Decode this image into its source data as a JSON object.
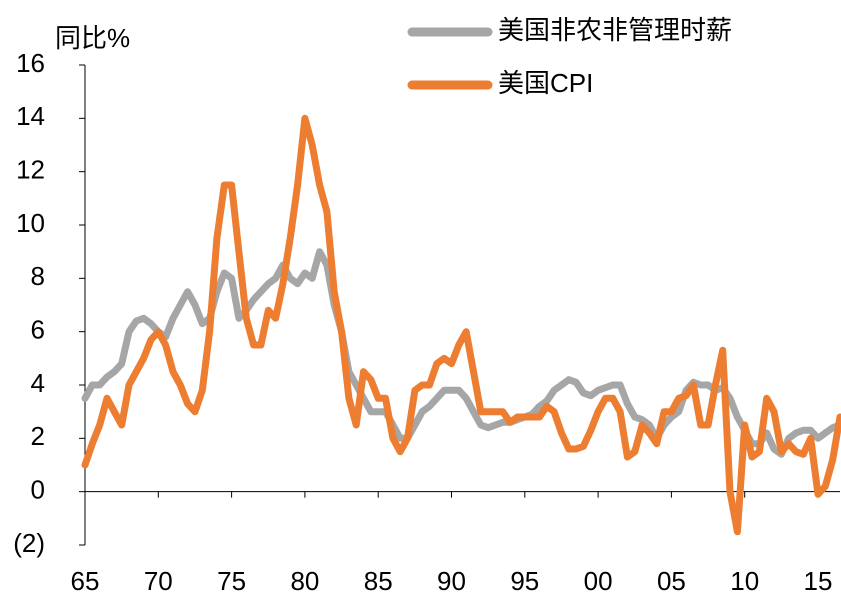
{
  "chart_data": {
    "type": "line",
    "ylabel": "同比%",
    "categories": [
      "65",
      null,
      null,
      null,
      null,
      null,
      null,
      null,
      null,
      null,
      "70",
      null,
      null,
      null,
      null,
      null,
      null,
      null,
      null,
      null,
      "75",
      null,
      null,
      null,
      null,
      null,
      null,
      null,
      null,
      null,
      "80",
      null,
      null,
      null,
      null,
      null,
      null,
      null,
      null,
      null,
      "85",
      null,
      null,
      null,
      null,
      null,
      null,
      null,
      null,
      null,
      "90",
      null,
      null,
      null,
      null,
      null,
      null,
      null,
      null,
      null,
      "95",
      null,
      null,
      null,
      null,
      null,
      null,
      null,
      null,
      null,
      "00",
      null,
      null,
      null,
      null,
      null,
      null,
      null,
      null,
      null,
      "05",
      null,
      null,
      null,
      null,
      null,
      null,
      null,
      null,
      null,
      "10",
      null,
      null,
      null,
      null,
      null,
      null,
      null,
      null,
      null,
      "15",
      null,
      null,
      null
    ],
    "series": [
      {
        "name": "美国非农非管理时薪",
        "color": "#a6a6a6",
        "values": [
          3.5,
          4.0,
          4.0,
          4.3,
          4.5,
          4.8,
          6.0,
          6.4,
          6.5,
          6.3,
          6.0,
          5.8,
          6.5,
          7.0,
          7.5,
          7.0,
          6.3,
          6.5,
          7.5,
          8.2,
          8.0,
          6.5,
          6.8,
          7.2,
          7.5,
          7.8,
          8.0,
          8.5,
          8.0,
          7.8,
          8.2,
          8.0,
          9.0,
          8.5,
          7.0,
          6.0,
          4.5,
          4.0,
          3.5,
          3.0,
          3.0,
          3.0,
          2.5,
          2.0,
          2.0,
          2.5,
          3.0,
          3.2,
          3.5,
          3.8,
          3.8,
          3.8,
          3.5,
          3.0,
          2.5,
          2.4,
          2.5,
          2.6,
          2.6,
          2.7,
          2.8,
          2.9,
          3.2,
          3.4,
          3.8,
          4.0,
          4.2,
          4.1,
          3.7,
          3.6,
          3.8,
          3.9,
          4.0,
          4.0,
          3.3,
          2.8,
          2.7,
          2.5,
          2.0,
          2.5,
          2.8,
          3.0,
          3.8,
          4.1,
          4.0,
          4.0,
          3.8,
          3.9,
          3.5,
          2.8,
          2.3,
          1.8,
          1.8,
          2.2,
          1.6,
          1.4,
          2.0,
          2.2,
          2.3,
          2.3,
          2.0,
          2.2,
          2.4,
          2.5
        ]
      },
      {
        "name": "美国CPI",
        "color": "#ed7d31",
        "values": [
          1.0,
          1.8,
          2.5,
          3.5,
          3.0,
          2.5,
          4.0,
          4.5,
          5.0,
          5.7,
          6.0,
          5.5,
          4.5,
          4.0,
          3.3,
          3.0,
          3.8,
          6.0,
          9.5,
          11.5,
          11.5,
          9.0,
          6.5,
          5.5,
          5.5,
          6.8,
          6.5,
          7.8,
          9.5,
          11.5,
          14.0,
          13.0,
          11.5,
          10.5,
          7.5,
          6.0,
          3.5,
          2.5,
          4.5,
          4.2,
          3.5,
          3.5,
          2.0,
          1.5,
          2.0,
          3.8,
          4.0,
          4.0,
          4.8,
          5.0,
          4.8,
          5.5,
          6.0,
          4.5,
          3.0,
          3.0,
          3.0,
          3.0,
          2.6,
          2.8,
          2.8,
          2.8,
          2.8,
          3.2,
          3.0,
          2.2,
          1.6,
          1.6,
          1.7,
          2.3,
          3.0,
          3.5,
          3.5,
          3.0,
          1.3,
          1.5,
          2.5,
          2.2,
          1.8,
          3.0,
          3.0,
          3.5,
          3.6,
          4.0,
          2.5,
          2.5,
          4.0,
          5.3,
          0.0,
          -1.5,
          2.5,
          1.3,
          1.5,
          3.5,
          3.0,
          1.5,
          1.8,
          1.5,
          1.4,
          2.0,
          -0.1,
          0.2,
          1.2,
          2.8
        ]
      }
    ],
    "ylim": [
      -2,
      16
    ],
    "yticks": [
      {
        "value": -2,
        "label": "(2)"
      },
      0,
      2,
      4,
      6,
      8,
      10,
      12,
      14,
      16
    ],
    "negative_label_color": "#ff0000",
    "grid": false,
    "legend": "top-right"
  }
}
